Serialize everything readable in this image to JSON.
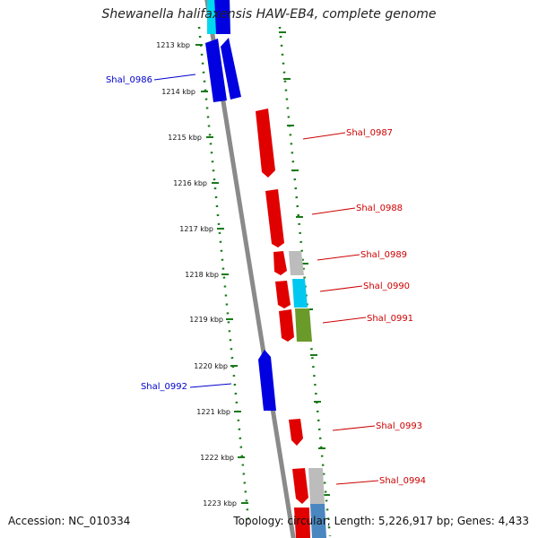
{
  "title": "Shewanella halifaxensis HAW-EB4, complete genome",
  "accession": "Accession: NC_010334",
  "topology": "Topology: circular; Length: 5,226,917 bp; Genes: 4,433",
  "colors": {
    "forward": "#0000e0",
    "reverse": "#e00000",
    "backbone": "#808080",
    "ticks": "#1a7a1a",
    "grey": "#bcbcbc",
    "cyan": "#00c8f0",
    "olive": "#6a9a2a",
    "steel": "#4a86c0"
  },
  "kbp_labels": [
    "1213 kbp",
    "1214 kbp",
    "1215 kbp",
    "1216 kbp",
    "1217 kbp",
    "1218 kbp",
    "1219 kbp",
    "1220 kbp",
    "1221 kbp",
    "1222 kbp",
    "1223 kbp"
  ],
  "gene_labels": [
    {
      "name": "Shal_0986",
      "strand": "forward"
    },
    {
      "name": "Shal_0987",
      "strand": "reverse"
    },
    {
      "name": "Shal_0988",
      "strand": "reverse"
    },
    {
      "name": "Shal_0989",
      "strand": "reverse"
    },
    {
      "name": "Shal_0990",
      "strand": "reverse"
    },
    {
      "name": "Shal_0991",
      "strand": "reverse"
    },
    {
      "name": "Shal_0992",
      "strand": "forward"
    },
    {
      "name": "Shal_0993",
      "strand": "reverse"
    },
    {
      "name": "Shal_0994",
      "strand": "reverse"
    }
  ]
}
